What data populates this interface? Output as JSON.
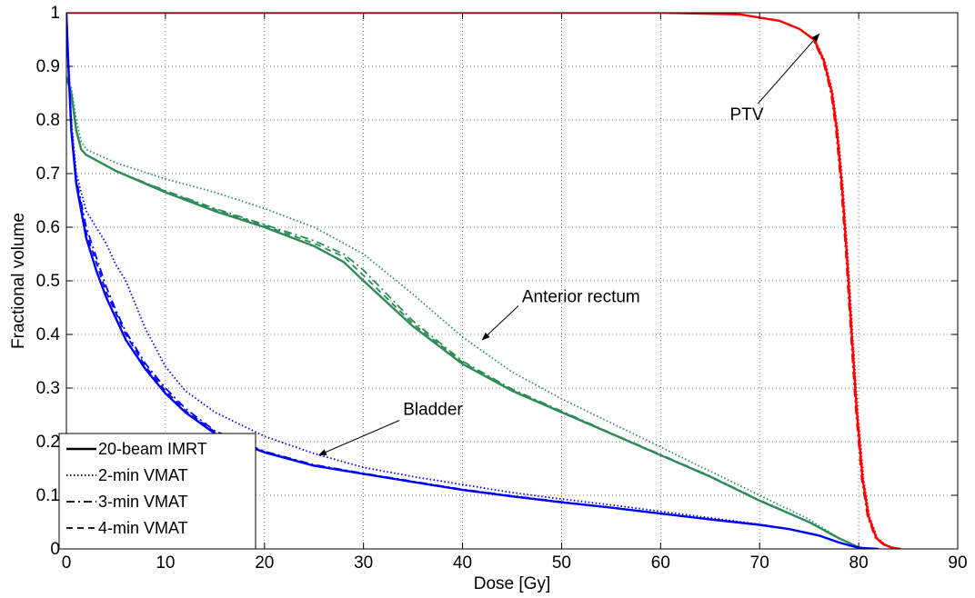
{
  "chart_data": {
    "type": "line",
    "title": "",
    "xlabel": "Dose [Gy]",
    "ylabel": "Fractional volume",
    "xlim": [
      0,
      90
    ],
    "ylim": [
      0,
      1
    ],
    "xticks": [
      "0",
      "10",
      "20",
      "30",
      "40",
      "50",
      "60",
      "70",
      "80",
      "90"
    ],
    "yticks": [
      "0",
      "0.1",
      "0.2",
      "0.3",
      "0.4",
      "0.5",
      "0.6",
      "0.7",
      "0.8",
      "0.9",
      "1"
    ],
    "grid": true,
    "grid_style": "dotted",
    "legend_position": "bottom-left",
    "legend": [
      {
        "label": "20-beam IMRT",
        "dash": "solid"
      },
      {
        "label": "2-min VMAT",
        "dash": "dotted"
      },
      {
        "label": "3-min VMAT",
        "dash": "dashdot"
      },
      {
        "label": "4-min VMAT",
        "dash": "dashed"
      }
    ],
    "structures": [
      {
        "name": "PTV",
        "color": "#ff0000",
        "series": [
          {
            "plan": "20-beam IMRT",
            "dash": "solid",
            "x": [
              0,
              60,
              68,
              72,
              74,
              75.5,
              76.5,
              77.3,
              77.8,
              78.3,
              78.8,
              79.3,
              79.8,
              80.4,
              81,
              81.8,
              82.6,
              83.4,
              84.2
            ],
            "y": [
              1,
              1,
              0.997,
              0.985,
              0.97,
              0.95,
              0.91,
              0.85,
              0.78,
              0.68,
              0.55,
              0.4,
              0.26,
              0.13,
              0.06,
              0.02,
              0.008,
              0.002,
              0
            ]
          },
          {
            "plan": "2-min VMAT",
            "dash": "dotted",
            "x": [
              0,
              60,
              68,
              72,
              74,
              75.6,
              76.6,
              77.4,
              77.9,
              78.4,
              78.9,
              79.4,
              79.9,
              80.5,
              81.1,
              81.9,
              82.7,
              83.6,
              84.4
            ],
            "y": [
              1,
              1,
              0.997,
              0.985,
              0.97,
              0.95,
              0.91,
              0.85,
              0.78,
              0.68,
              0.55,
              0.4,
              0.26,
              0.13,
              0.06,
              0.02,
              0.008,
              0.002,
              0
            ]
          },
          {
            "plan": "3-min VMAT",
            "dash": "dashdot",
            "x": [
              0,
              60,
              68,
              72,
              74,
              75.4,
              76.4,
              77.2,
              77.7,
              78.2,
              78.7,
              79.2,
              79.7,
              80.3,
              80.9,
              81.7,
              82.5,
              83.3,
              84.1
            ],
            "y": [
              1,
              1,
              0.997,
              0.985,
              0.97,
              0.95,
              0.91,
              0.85,
              0.78,
              0.68,
              0.55,
              0.4,
              0.26,
              0.13,
              0.06,
              0.02,
              0.008,
              0.002,
              0
            ]
          },
          {
            "plan": "4-min VMAT",
            "dash": "dashed",
            "x": [
              0,
              60,
              68,
              72,
              74,
              75.5,
              76.5,
              77.3,
              77.8,
              78.3,
              78.8,
              79.3,
              79.8,
              80.4,
              81,
              81.8,
              82.6,
              83.4,
              84.2
            ],
            "y": [
              1,
              1,
              0.997,
              0.985,
              0.97,
              0.95,
              0.91,
              0.85,
              0.78,
              0.68,
              0.55,
              0.4,
              0.26,
              0.13,
              0.06,
              0.02,
              0.008,
              0.002,
              0
            ]
          }
        ]
      },
      {
        "name": "Anterior rectum",
        "color": "#2e8b57",
        "series": [
          {
            "plan": "20-beam IMRT",
            "dash": "solid",
            "x": [
              0,
              0.5,
              1,
              1.5,
              2,
              5,
              10,
              15,
              20,
              25,
              28,
              30,
              35,
              40,
              45,
              50,
              55,
              60,
              65,
              70,
              75,
              78,
              80,
              81
            ],
            "y": [
              0.88,
              0.85,
              0.78,
              0.745,
              0.735,
              0.705,
              0.665,
              0.63,
              0.6,
              0.565,
              0.535,
              0.5,
              0.415,
              0.345,
              0.295,
              0.255,
              0.215,
              0.175,
              0.135,
              0.09,
              0.05,
              0.02,
              0.003,
              0
            ]
          },
          {
            "plan": "2-min VMAT",
            "dash": "dotted",
            "x": [
              0,
              0.5,
              1,
              1.5,
              2,
              5,
              10,
              15,
              20,
              25,
              30,
              35,
              40,
              45,
              50,
              55,
              60,
              65,
              70,
              75,
              78,
              80,
              81
            ],
            "y": [
              0.88,
              0.86,
              0.8,
              0.76,
              0.745,
              0.72,
              0.69,
              0.665,
              0.635,
              0.6,
              0.55,
              0.475,
              0.395,
              0.33,
              0.28,
              0.235,
              0.19,
              0.145,
              0.1,
              0.055,
              0.02,
              0.003,
              0
            ]
          },
          {
            "plan": "3-min VMAT",
            "dash": "dashdot",
            "x": [
              0,
              0.5,
              1,
              1.5,
              2,
              5,
              10,
              15,
              20,
              25,
              28,
              30,
              35,
              40,
              45,
              50,
              55,
              60,
              65,
              70,
              75,
              78,
              80,
              81
            ],
            "y": [
              0.88,
              0.85,
              0.78,
              0.745,
              0.735,
              0.705,
              0.668,
              0.635,
              0.605,
              0.575,
              0.55,
              0.52,
              0.425,
              0.35,
              0.298,
              0.257,
              0.216,
              0.176,
              0.136,
              0.091,
              0.05,
              0.02,
              0.003,
              0
            ]
          },
          {
            "plan": "4-min VMAT",
            "dash": "dashed",
            "x": [
              0,
              0.5,
              1,
              1.5,
              2,
              5,
              10,
              15,
              20,
              25,
              28,
              30,
              35,
              40,
              45,
              50,
              55,
              60,
              65,
              70,
              75,
              78,
              80,
              81
            ],
            "y": [
              0.88,
              0.85,
              0.78,
              0.745,
              0.735,
              0.705,
              0.667,
              0.633,
              0.603,
              0.57,
              0.545,
              0.51,
              0.42,
              0.348,
              0.296,
              0.256,
              0.215,
              0.175,
              0.135,
              0.09,
              0.05,
              0.02,
              0.003,
              0
            ]
          }
        ]
      },
      {
        "name": "Bladder",
        "color": "#0000ff",
        "series": [
          {
            "plan": "20-beam IMRT",
            "dash": "solid",
            "x": [
              0,
              0.2,
              0.5,
              1,
              2,
              3,
              4,
              5,
              6,
              8,
              10,
              12,
              15,
              20,
              25,
              30,
              35,
              40,
              45,
              50,
              55,
              60,
              65,
              70,
              73,
              76,
              78,
              80,
              82
            ],
            "y": [
              1,
              0.9,
              0.78,
              0.68,
              0.58,
              0.52,
              0.47,
              0.43,
              0.39,
              0.335,
              0.29,
              0.255,
              0.215,
              0.18,
              0.155,
              0.14,
              0.125,
              0.11,
              0.098,
              0.087,
              0.077,
              0.066,
              0.055,
              0.045,
              0.037,
              0.025,
              0.012,
              0.002,
              0
            ]
          },
          {
            "plan": "2-min VMAT",
            "dash": "dotted",
            "x": [
              0,
              0.2,
              0.5,
              1,
              2,
              3,
              4,
              5,
              6,
              8,
              10,
              12,
              15,
              20,
              25,
              30,
              35,
              40,
              45,
              50,
              55,
              60,
              65,
              70,
              73,
              76,
              78,
              80,
              82
            ],
            "y": [
              1,
              0.92,
              0.8,
              0.7,
              0.63,
              0.6,
              0.57,
              0.53,
              0.5,
              0.41,
              0.34,
              0.295,
              0.255,
              0.21,
              0.178,
              0.152,
              0.135,
              0.12,
              0.105,
              0.093,
              0.082,
              0.07,
              0.058,
              0.046,
              0.037,
              0.025,
              0.012,
              0.002,
              0
            ]
          },
          {
            "plan": "3-min VMAT",
            "dash": "dashdot",
            "x": [
              0,
              0.2,
              0.5,
              1,
              2,
              3,
              4,
              5,
              6,
              8,
              10,
              12,
              15,
              20,
              25,
              30,
              35,
              40,
              45,
              50,
              55,
              60,
              65,
              70,
              73,
              76,
              78,
              80,
              82
            ],
            "y": [
              1,
              0.9,
              0.79,
              0.69,
              0.6,
              0.545,
              0.49,
              0.445,
              0.405,
              0.345,
              0.3,
              0.262,
              0.22,
              0.182,
              0.157,
              0.141,
              0.126,
              0.111,
              0.099,
              0.088,
              0.077,
              0.066,
              0.055,
              0.045,
              0.037,
              0.025,
              0.012,
              0.002,
              0
            ]
          },
          {
            "plan": "4-min VMAT",
            "dash": "dashed",
            "x": [
              0,
              0.2,
              0.5,
              1,
              2,
              3,
              4,
              5,
              6,
              8,
              10,
              12,
              15,
              20,
              25,
              30,
              35,
              40,
              45,
              50,
              55,
              60,
              65,
              70,
              73,
              76,
              78,
              80,
              82
            ],
            "y": [
              1,
              0.9,
              0.785,
              0.685,
              0.59,
              0.535,
              0.48,
              0.44,
              0.4,
              0.34,
              0.295,
              0.258,
              0.218,
              0.181,
              0.156,
              0.14,
              0.125,
              0.11,
              0.098,
              0.087,
              0.077,
              0.066,
              0.055,
              0.045,
              0.037,
              0.025,
              0.012,
              0.002,
              0
            ]
          }
        ]
      }
    ],
    "annotations": [
      {
        "text": "PTV",
        "text_at": [
          67,
          0.8
        ],
        "arrow_to": [
          76,
          0.96
        ]
      },
      {
        "text": "Anterior rectum",
        "text_at": [
          46,
          0.46
        ],
        "arrow_to": [
          42,
          0.39
        ]
      },
      {
        "text": "Bladder",
        "text_at": [
          34,
          0.25
        ],
        "arrow_to": [
          25.5,
          0.175
        ]
      }
    ]
  }
}
